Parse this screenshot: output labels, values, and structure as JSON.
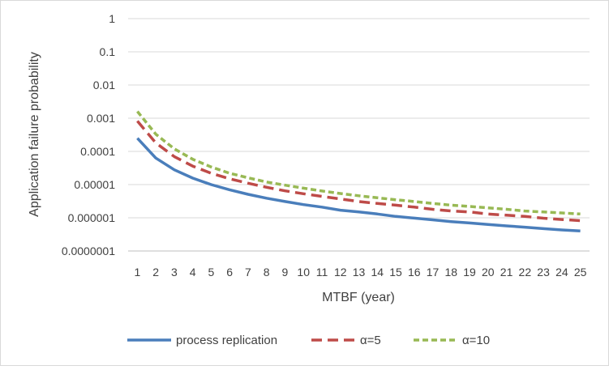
{
  "chart_data": {
    "type": "line",
    "xlabel": "MTBF (year)",
    "ylabel": "Application failure probability",
    "y_scale": "log",
    "ylim": [
      1e-07,
      1
    ],
    "y_tick_labels": [
      "1",
      "0.1",
      "0.01",
      "0.001",
      "0.0001",
      "0.00001",
      "0.000001",
      "0.0000001"
    ],
    "y_tick_values": [
      1,
      0.1,
      0.01,
      0.001,
      0.0001,
      1e-05,
      1e-06,
      1e-07
    ],
    "grid": "horizontal",
    "legend_position": "bottom",
    "categories": [
      "1",
      "2",
      "3",
      "4",
      "5",
      "6",
      "7",
      "8",
      "9",
      "10",
      "11",
      "12",
      "13",
      "14",
      "15",
      "16",
      "17",
      "18",
      "19",
      "20",
      "21",
      "22",
      "23",
      "24",
      "25"
    ],
    "series": [
      {
        "name": "process replication",
        "color": "#4a7ebb",
        "dash": "solid",
        "values": [
          0.00025,
          6.3e-05,
          2.8e-05,
          1.57e-05,
          1e-05,
          7e-06,
          5.1e-06,
          3.9e-06,
          3.1e-06,
          2.5e-06,
          2.1e-06,
          1.7e-06,
          1.5e-06,
          1.3e-06,
          1.1e-06,
          9.8e-07,
          8.7e-07,
          7.7e-07,
          7e-07,
          6.3e-07,
          5.7e-07,
          5.2e-07,
          4.7e-07,
          4.3e-07,
          4e-07
        ]
      },
      {
        "name": "α=5",
        "color": "#be4b48",
        "dash": "long",
        "values": [
          0.00082,
          0.00018,
          7e-05,
          3.6e-05,
          2.2e-05,
          1.5e-05,
          1.1e-05,
          8.3e-06,
          6.5e-06,
          5.3e-06,
          4.4e-06,
          3.7e-06,
          3.1e-06,
          2.7e-06,
          2.4e-06,
          2.1e-06,
          1.8e-06,
          1.6e-06,
          1.5e-06,
          1.3e-06,
          1.2e-06,
          1.1e-06,
          9.7e-07,
          8.9e-07,
          8.2e-07
        ]
      },
      {
        "name": "α=10",
        "color": "#98b954",
        "dash": "short",
        "values": [
          0.0016,
          0.00033,
          0.00012,
          5.8e-05,
          3.4e-05,
          2.2e-05,
          1.6e-05,
          1.2e-05,
          9.6e-06,
          7.8e-06,
          6.4e-06,
          5.4e-06,
          4.6e-06,
          4e-06,
          3.5e-06,
          3.1e-06,
          2.7e-06,
          2.4e-06,
          2.2e-06,
          2e-06,
          1.8e-06,
          1.6e-06,
          1.5e-06,
          1.4e-06,
          1.3e-06
        ]
      }
    ]
  }
}
